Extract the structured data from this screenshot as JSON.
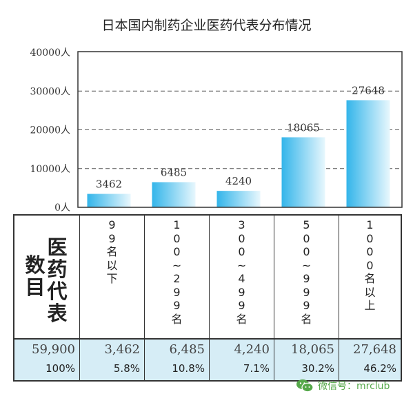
{
  "chart_data": {
    "type": "bar",
    "title": "日本国内制药企业医药代表分布情况",
    "categories": [
      "99名以下",
      "100~299名",
      "300~499名",
      "500~999名",
      "1000名以上"
    ],
    "values": [
      3462,
      6485,
      4240,
      18065,
      27648
    ],
    "value_labels": [
      "3462",
      "6485",
      "4240",
      "18065",
      "27648"
    ],
    "yticks": [
      "0人",
      "10000人",
      "20000人",
      "30000人",
      "40000人"
    ],
    "ytick_values": [
      0,
      10000,
      20000,
      30000,
      40000
    ],
    "ylim": [
      0,
      40000
    ],
    "grid": "dashed horizontal",
    "bar_gradient": [
      "#33b5ea",
      "#e8f7fd"
    ]
  },
  "table": {
    "header_label_a": "数目",
    "header_label_b": "医药代表",
    "columns": [
      "99名以下",
      "100~299名",
      "300~499名",
      "500~999名",
      "1000名以上"
    ],
    "total": "59,900",
    "total_pct": "100%",
    "counts": [
      "3,462",
      "6,485",
      "4,240",
      "18,065",
      "27,648"
    ],
    "percents": [
      "5.8%",
      "10.8%",
      "7.1%",
      "30.2%",
      "46.2%"
    ]
  },
  "watermark": {
    "icon": "wechat-icon",
    "text": "微信号：mrclub",
    "color": "#55a84a"
  }
}
